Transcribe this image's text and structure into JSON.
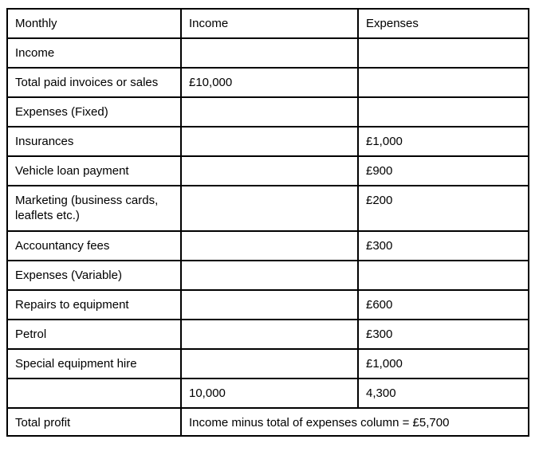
{
  "table": {
    "header": [
      "Monthly",
      "Income",
      "Expenses"
    ],
    "rows": [
      {
        "label": "Income",
        "income": "",
        "expenses": ""
      },
      {
        "label": "Total paid invoices or sales",
        "income": "£10,000",
        "expenses": ""
      },
      {
        "label": "Expenses (Fixed)",
        "income": "",
        "expenses": ""
      },
      {
        "label": "Insurances",
        "income": "",
        "expenses": "£1,000"
      },
      {
        "label": "Vehicle loan payment",
        "income": "",
        "expenses": "£900"
      },
      {
        "label": "Marketing (business cards, leaflets etc.)",
        "income": "",
        "expenses": "£200"
      },
      {
        "label": "Accountancy fees",
        "income": "",
        "expenses": "£300"
      },
      {
        "label": "Expenses (Variable)",
        "income": "",
        "expenses": ""
      },
      {
        "label": "Repairs to equipment",
        "income": "",
        "expenses": "£600"
      },
      {
        "label": "Petrol",
        "income": "",
        "expenses": "£300"
      },
      {
        "label": "Special equipment hire",
        "income": "",
        "expenses": "£1,000"
      },
      {
        "label": "",
        "income": "10,000",
        "expenses": "4,300"
      }
    ],
    "total_row": {
      "label": "Total profit",
      "value": "Income minus total of expenses column = £5,700"
    },
    "colors": {
      "border": "#000000",
      "text": "#000000",
      "background": "#ffffff"
    }
  }
}
